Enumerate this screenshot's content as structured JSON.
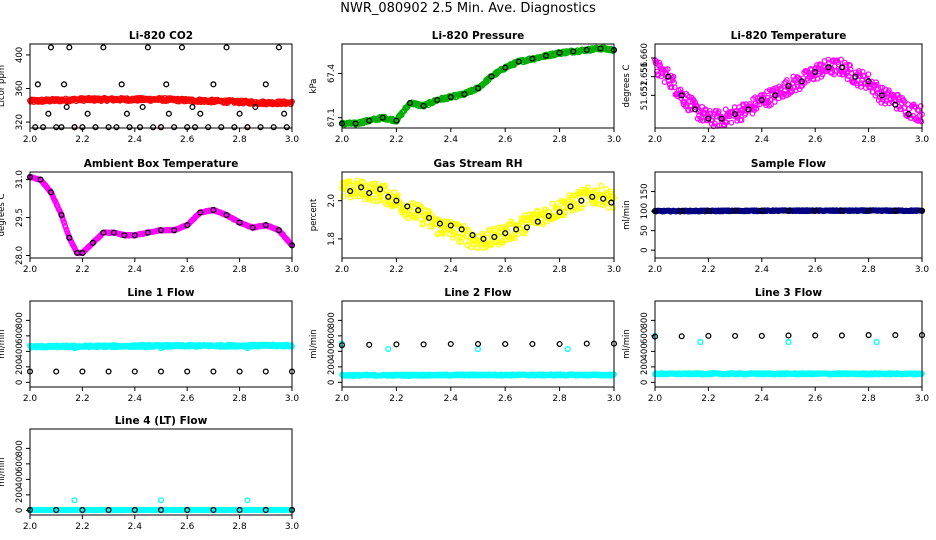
{
  "page_title": "NWR_080902  2.5 Min. Ave. Diagnostics",
  "colors": {
    "red": "#ff0000",
    "green": "#00b000",
    "magenta": "#ff00ff",
    "yellow": "#ffff00",
    "cyan": "#00ffff",
    "navy": "#000080",
    "black": "#000000"
  },
  "chart_data": [
    {
      "type": "scatter",
      "title": "Li-820 CO2",
      "ylabel": "Licor ppm",
      "xlim": [
        2.0,
        3.0
      ],
      "ylim": [
        313,
        413
      ],
      "xticks": [
        "2.0",
        "2.2",
        "2.4",
        "2.6",
        "2.8",
        "3.0"
      ],
      "yticks": [
        "320",
        "360",
        "400"
      ],
      "series": [
        {
          "color": "#ff0000",
          "style": "dense",
          "x": [
            2.0,
            2.1,
            2.2,
            2.3,
            2.4,
            2.5,
            2.6,
            2.7,
            2.8,
            2.9,
            3.0
          ],
          "y": [
            345,
            346,
            347,
            347,
            347,
            347,
            346,
            345,
            344,
            343,
            343
          ],
          "jitter": 2
        },
        {
          "color": "#ff0000",
          "style": "points",
          "x": [
            2.17,
            2.5,
            2.83
          ],
          "y": [
            314,
            314,
            314
          ]
        },
        {
          "color": "#000000",
          "style": "points",
          "x": [
            2.02,
            2.05,
            2.1,
            2.12,
            2.17,
            2.2,
            2.25,
            2.3,
            2.33,
            2.38,
            2.42,
            2.47,
            2.5,
            2.55,
            2.6,
            2.63,
            2.68,
            2.73,
            2.78,
            2.83,
            2.88,
            2.93,
            2.98,
            2.08,
            2.15,
            2.28,
            2.45,
            2.58,
            2.75,
            2.95,
            2.03,
            2.13,
            2.35,
            2.52,
            2.7,
            2.9
          ],
          "y": [
            314,
            314,
            314,
            314,
            314,
            314,
            314,
            314,
            314,
            314,
            314,
            314,
            314,
            314,
            314,
            314,
            314,
            314,
            314,
            314,
            314,
            314,
            314,
            409,
            409,
            409,
            409,
            409,
            409,
            409,
            365,
            365,
            365,
            365,
            365,
            365
          ]
        },
        {
          "color": "#000000",
          "style": "points",
          "x": [
            2.07,
            2.22,
            2.37,
            2.53,
            2.65,
            2.8,
            2.97,
            2.14,
            2.43,
            2.62,
            2.86
          ],
          "y": [
            330,
            330,
            330,
            330,
            330,
            330,
            330,
            338,
            338,
            338,
            338
          ]
        }
      ]
    },
    {
      "type": "scatter",
      "title": "Li-820 Pressure",
      "ylabel": "kPa",
      "xlim": [
        2.0,
        3.0
      ],
      "ylim": [
        67.03,
        67.6
      ],
      "xticks": [
        "2.0",
        "2.2",
        "2.4",
        "2.6",
        "2.8",
        "3.0"
      ],
      "yticks": [
        "67.1",
        "67.4"
      ],
      "series": [
        {
          "color": "#00b000",
          "style": "dense",
          "x": [
            2.0,
            2.05,
            2.1,
            2.15,
            2.2,
            2.25,
            2.3,
            2.35,
            2.4,
            2.45,
            2.5,
            2.55,
            2.6,
            2.65,
            2.7,
            2.75,
            2.8,
            2.85,
            2.9,
            2.95,
            3.0
          ],
          "y": [
            67.06,
            67.06,
            67.08,
            67.1,
            67.08,
            67.2,
            67.18,
            67.22,
            67.24,
            67.26,
            67.3,
            67.38,
            67.44,
            67.48,
            67.5,
            67.52,
            67.54,
            67.55,
            67.56,
            67.57,
            67.56
          ],
          "jitter": 0.01
        },
        {
          "color": "#000000",
          "style": "points",
          "x": [
            2.0,
            2.05,
            2.1,
            2.15,
            2.2,
            2.25,
            2.3,
            2.35,
            2.4,
            2.45,
            2.5,
            2.55,
            2.6,
            2.65,
            2.7,
            2.75,
            2.8,
            2.85,
            2.9,
            2.95,
            3.0
          ],
          "y": [
            67.06,
            67.06,
            67.08,
            67.1,
            67.08,
            67.2,
            67.18,
            67.22,
            67.24,
            67.26,
            67.3,
            67.38,
            67.44,
            67.48,
            67.5,
            67.52,
            67.54,
            67.55,
            67.56,
            67.57,
            67.56
          ]
        }
      ]
    },
    {
      "type": "scatter",
      "title": "Li-820 Temperature",
      "ylabel": "degrees C",
      "xlim": [
        2.0,
        3.0
      ],
      "ylim": [
        51.645,
        51.663
      ],
      "xticks": [
        "2.0",
        "2.2",
        "2.4",
        "2.6",
        "2.8",
        "3.0"
      ],
      "yticks": [
        "51.652",
        "51.656",
        "51.660"
      ],
      "series": [
        {
          "color": "#ff00ff",
          "style": "dense",
          "x": [
            2.0,
            2.05,
            2.1,
            2.15,
            2.2,
            2.25,
            2.3,
            2.35,
            2.4,
            2.45,
            2.5,
            2.55,
            2.6,
            2.65,
            2.7,
            2.75,
            2.8,
            2.85,
            2.9,
            2.95,
            3.0
          ],
          "y": [
            51.658,
            51.656,
            51.652,
            51.649,
            51.647,
            51.647,
            51.648,
            51.649,
            51.651,
            51.652,
            51.654,
            51.655,
            51.657,
            51.658,
            51.658,
            51.656,
            51.655,
            51.652,
            51.651,
            51.649,
            51.648
          ],
          "jitter": 0.0018
        },
        {
          "color": "#000000",
          "style": "points",
          "x": [
            2.05,
            2.1,
            2.15,
            2.2,
            2.25,
            2.3,
            2.35,
            2.4,
            2.45,
            2.5,
            2.55,
            2.6,
            2.65,
            2.7,
            2.75,
            2.8,
            2.85,
            2.9,
            2.95
          ],
          "y": [
            51.656,
            51.652,
            51.649,
            51.647,
            51.647,
            51.648,
            51.649,
            51.651,
            51.652,
            51.654,
            51.655,
            51.657,
            51.658,
            51.658,
            51.656,
            51.655,
            51.652,
            51.65,
            51.648
          ]
        }
      ]
    },
    {
      "type": "scatter",
      "title": "Ambient Box Temperature",
      "ylabel": "degrees C",
      "xlim": [
        2.0,
        3.0
      ],
      "ylim": [
        27.9,
        31.3
      ],
      "xticks": [
        "2.0",
        "2.2",
        "2.4",
        "2.6",
        "2.8",
        "3.0"
      ],
      "yticks": [
        "28.0",
        "29.5",
        "31.0"
      ],
      "series": [
        {
          "color": "#ff00ff",
          "style": "dense",
          "x": [
            2.0,
            2.04,
            2.08,
            2.12,
            2.15,
            2.18,
            2.2,
            2.24,
            2.28,
            2.32,
            2.36,
            2.4,
            2.45,
            2.5,
            2.55,
            2.6,
            2.65,
            2.7,
            2.75,
            2.8,
            2.85,
            2.9,
            2.95,
            3.0
          ],
          "y": [
            31.1,
            31.0,
            30.5,
            29.6,
            28.7,
            28.1,
            28.1,
            28.5,
            28.9,
            28.9,
            28.8,
            28.8,
            28.9,
            29.0,
            29.0,
            29.2,
            29.7,
            29.8,
            29.6,
            29.3,
            29.1,
            29.2,
            29.0,
            28.4
          ],
          "jitter": 0.02
        },
        {
          "color": "#000000",
          "style": "points",
          "x": [
            2.0,
            2.04,
            2.08,
            2.12,
            2.15,
            2.18,
            2.2,
            2.24,
            2.28,
            2.32,
            2.36,
            2.4,
            2.45,
            2.5,
            2.55,
            2.6,
            2.65,
            2.7,
            2.75,
            2.8,
            2.85,
            2.9,
            2.95,
            3.0
          ],
          "y": [
            31.1,
            31.0,
            30.5,
            29.6,
            28.7,
            28.1,
            28.1,
            28.5,
            28.9,
            28.9,
            28.8,
            28.8,
            28.9,
            29.0,
            29.0,
            29.2,
            29.7,
            29.8,
            29.6,
            29.3,
            29.1,
            29.2,
            29.0,
            28.4
          ]
        }
      ]
    },
    {
      "type": "scatter",
      "title": "Gas Stream RH",
      "ylabel": "percent",
      "xlim": [
        2.0,
        3.0
      ],
      "ylim": [
        1.7,
        2.15
      ],
      "xticks": [
        "2.0",
        "2.2",
        "2.4",
        "2.6",
        "2.8",
        "3.0"
      ],
      "yticks": [
        "1.8",
        "2.0"
      ],
      "series": [
        {
          "color": "#ffff00",
          "style": "dense",
          "x": [
            2.0,
            2.05,
            2.1,
            2.15,
            2.2,
            2.25,
            2.3,
            2.35,
            2.4,
            2.45,
            2.5,
            2.55,
            2.6,
            2.65,
            2.7,
            2.75,
            2.8,
            2.85,
            2.9,
            2.95,
            3.0
          ],
          "y": [
            2.05,
            2.06,
            2.05,
            2.04,
            2.0,
            1.95,
            1.92,
            1.87,
            1.85,
            1.82,
            1.79,
            1.8,
            1.83,
            1.86,
            1.9,
            1.93,
            1.96,
            1.99,
            2.02,
            2.03,
            2.0
          ],
          "jitter": 0.05
        },
        {
          "color": "#000000",
          "style": "points",
          "x": [
            2.03,
            2.07,
            2.1,
            2.14,
            2.17,
            2.2,
            2.24,
            2.28,
            2.32,
            2.36,
            2.4,
            2.44,
            2.48,
            2.52,
            2.56,
            2.6,
            2.64,
            2.68,
            2.72,
            2.76,
            2.8,
            2.84,
            2.88,
            2.92,
            2.96,
            2.99
          ],
          "y": [
            2.05,
            2.07,
            2.04,
            2.06,
            2.02,
            2.0,
            1.97,
            1.95,
            1.91,
            1.88,
            1.87,
            1.85,
            1.82,
            1.8,
            1.81,
            1.83,
            1.85,
            1.86,
            1.89,
            1.92,
            1.94,
            1.97,
            2.0,
            2.02,
            2.01,
            1.99
          ]
        }
      ]
    },
    {
      "type": "scatter",
      "title": "Sample Flow",
      "ylabel": "ml/min",
      "xlim": [
        2.0,
        3.0
      ],
      "ylim": [
        -20,
        200
      ],
      "xticks": [
        "2.0",
        "2.2",
        "2.4",
        "2.6",
        "2.8",
        "3.0"
      ],
      "yticks": [
        "0",
        "50",
        "100",
        "150"
      ],
      "series": [
        {
          "color": "#000080",
          "style": "dense",
          "x": [
            2.0,
            2.5,
            3.0
          ],
          "y": [
            100,
            101,
            101
          ],
          "jitter": 1.5
        },
        {
          "color": "#000000",
          "style": "points",
          "x": [
            2.0,
            2.1,
            2.2,
            2.3,
            2.4,
            2.5,
            2.6,
            2.7,
            2.8,
            2.9,
            3.0
          ],
          "y": [
            100,
            100,
            100,
            101,
            101,
            101,
            101,
            101,
            101,
            101,
            101
          ]
        }
      ]
    },
    {
      "type": "scatter",
      "title": "Line 1 Flow",
      "ylabel": "ml/min",
      "xlim": [
        2.0,
        3.0
      ],
      "ylim": [
        -60,
        1050
      ],
      "xticks": [
        "2.0",
        "2.2",
        "2.4",
        "2.6",
        "2.8",
        "3.0"
      ],
      "yticks": [
        "0",
        "200",
        "400",
        "600",
        "800"
      ],
      "series": [
        {
          "color": "#00ffff",
          "style": "dense",
          "x": [
            2.0,
            2.5,
            3.0
          ],
          "y": [
            460,
            470,
            475
          ],
          "jitter": 15
        },
        {
          "color": "#00ffff",
          "style": "points",
          "x": [
            2.17,
            2.5,
            2.83
          ],
          "y": [
            440,
            440,
            440
          ]
        },
        {
          "color": "#000000",
          "style": "points",
          "x": [
            2.0,
            2.1,
            2.2,
            2.3,
            2.4,
            2.5,
            2.6,
            2.7,
            2.8,
            2.9,
            3.0
          ],
          "y": [
            140,
            140,
            140,
            140,
            140,
            140,
            140,
            140,
            140,
            140,
            140
          ]
        }
      ]
    },
    {
      "type": "scatter",
      "title": "Line 2 Flow",
      "ylabel": "ml/min",
      "xlim": [
        2.0,
        3.0
      ],
      "ylim": [
        -60,
        1050
      ],
      "xticks": [
        "2.0",
        "2.2",
        "2.4",
        "2.6",
        "2.8",
        "3.0"
      ],
      "yticks": [
        "0",
        "200",
        "400",
        "600",
        "800"
      ],
      "series": [
        {
          "color": "#00ffff",
          "style": "dense",
          "x": [
            2.0,
            2.5,
            3.0
          ],
          "y": [
            90,
            95,
            95
          ],
          "jitter": 10
        },
        {
          "color": "#00ffff",
          "style": "points",
          "x": [
            2.0,
            2.17,
            2.5,
            2.83
          ],
          "y": [
            500,
            430,
            430,
            430
          ]
        },
        {
          "color": "#000000",
          "style": "points",
          "x": [
            2.0,
            2.1,
            2.2,
            2.3,
            2.4,
            2.5,
            2.6,
            2.7,
            2.8,
            2.9,
            3.0
          ],
          "y": [
            480,
            485,
            490,
            490,
            495,
            495,
            495,
            495,
            495,
            500,
            500
          ]
        }
      ]
    },
    {
      "type": "scatter",
      "title": "Line 3 Flow",
      "ylabel": "ml/min",
      "xlim": [
        2.0,
        3.0
      ],
      "ylim": [
        -60,
        1050
      ],
      "xticks": [
        "2.0",
        "2.2",
        "2.4",
        "2.6",
        "2.8",
        "3.0"
      ],
      "yticks": [
        "0",
        "200",
        "400",
        "600",
        "800"
      ],
      "series": [
        {
          "color": "#00ffff",
          "style": "dense",
          "x": [
            2.0,
            2.5,
            3.0
          ],
          "y": [
            110,
            110,
            110
          ],
          "jitter": 10
        },
        {
          "color": "#00ffff",
          "style": "points",
          "x": [
            2.0,
            2.17,
            2.5,
            2.83
          ],
          "y": [
            600,
            520,
            520,
            520
          ]
        },
        {
          "color": "#000000",
          "style": "points",
          "x": [
            2.0,
            2.1,
            2.2,
            2.3,
            2.4,
            2.5,
            2.6,
            2.7,
            2.8,
            2.9,
            3.0
          ],
          "y": [
            590,
            595,
            600,
            600,
            600,
            605,
            605,
            605,
            610,
            610,
            610
          ]
        }
      ]
    },
    {
      "type": "scatter",
      "title": "Line 4 (LT) Flow",
      "ylabel": "ml/min",
      "xlim": [
        2.0,
        3.0
      ],
      "ylim": [
        -60,
        1050
      ],
      "xticks": [
        "2.0",
        "2.2",
        "2.4",
        "2.6",
        "2.8",
        "3.0"
      ],
      "yticks": [
        "0",
        "200",
        "400",
        "600",
        "800"
      ],
      "series": [
        {
          "color": "#00ffff",
          "style": "dense",
          "x": [
            2.0,
            2.5,
            3.0
          ],
          "y": [
            5,
            5,
            5
          ],
          "jitter": 3
        },
        {
          "color": "#00ffff",
          "style": "points",
          "x": [
            2.17,
            2.5,
            2.83
          ],
          "y": [
            130,
            130,
            130
          ]
        },
        {
          "color": "#000000",
          "style": "points",
          "x": [
            2.0,
            2.1,
            2.2,
            2.3,
            2.4,
            2.5,
            2.6,
            2.7,
            2.8,
            2.9,
            3.0
          ],
          "y": [
            5,
            5,
            5,
            5,
            5,
            5,
            5,
            5,
            5,
            5,
            5
          ]
        }
      ]
    }
  ]
}
